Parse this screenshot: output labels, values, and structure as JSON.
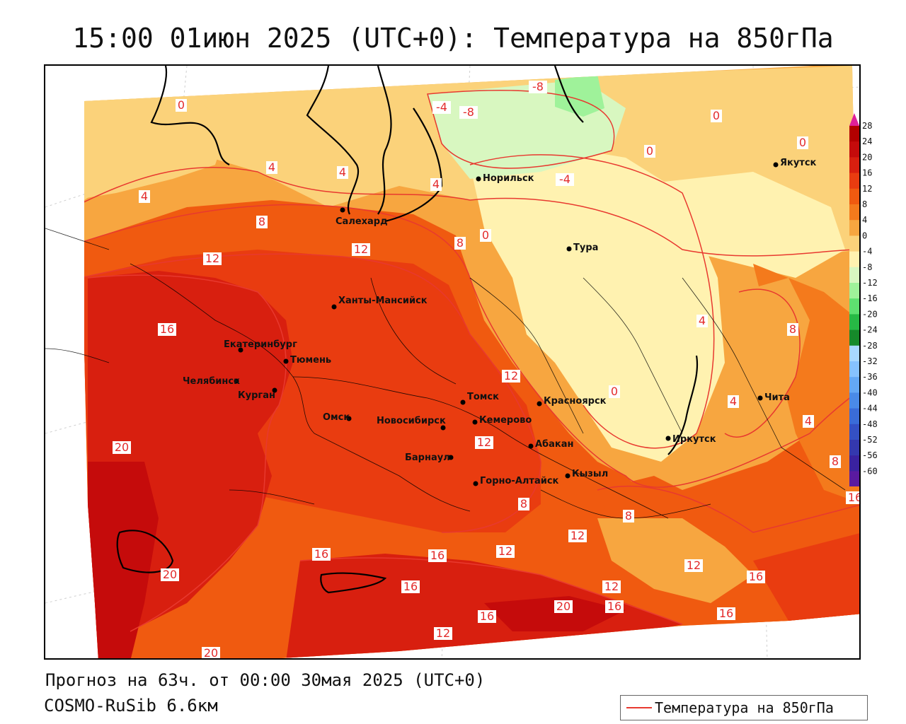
{
  "title": "15:00 01июн 2025 (UTC+0): Температура на 850гПа",
  "forecast_text": "Прогноз на 63ч. от 00:00 30мая 2025 (UTC+0)",
  "model_text": "COSMO-RuSib 6.6км",
  "legend": {
    "label": "Температура на 850гПа",
    "line_color": "#e8392f"
  },
  "colorbar": {
    "tick_labels": [
      "28",
      "24",
      "20",
      "16",
      "12",
      "8",
      "4",
      "0",
      "-4",
      "-8",
      "-12",
      "-16",
      "-20",
      "-24",
      "-28",
      "-32",
      "-36",
      "-40",
      "-44",
      "-48",
      "-52",
      "-56",
      "-60"
    ],
    "colors": [
      "#b30000",
      "#c50b0b",
      "#d81f0f",
      "#e93c10",
      "#f05a10",
      "#f47a1c",
      "#f7a640",
      "#fbd27a",
      "#fff2b0",
      "#d8f7c0",
      "#9ff29a",
      "#5ee070",
      "#27b945",
      "#168a2a",
      "#a8d8ff",
      "#86c2ff",
      "#64a8f5",
      "#4a8ae8",
      "#3a6cd8",
      "#3450c4",
      "#3438ae",
      "#3a22a0",
      "#5a1aa0"
    ],
    "top_arrow_color": "#e0209a",
    "bottom_arrow_color": "#8a1ab0"
  },
  "cities": [
    {
      "name": "Норильск"
    },
    {
      "name": "Салехард"
    },
    {
      "name": "Якутск"
    },
    {
      "name": "Тура"
    },
    {
      "name": "Ханты-Мансийск"
    },
    {
      "name": "Екатеринбург"
    },
    {
      "name": "Тюмень"
    },
    {
      "name": "Челябинск"
    },
    {
      "name": "Курган"
    },
    {
      "name": "Омск"
    },
    {
      "name": "Новосибирск"
    },
    {
      "name": "Томск"
    },
    {
      "name": "Кемерово"
    },
    {
      "name": "Красноярск"
    },
    {
      "name": "Барнаул"
    },
    {
      "name": "Абакан"
    },
    {
      "name": "Горно-Алтайск"
    },
    {
      "name": "Кызыл"
    },
    {
      "name": "Иркутск"
    },
    {
      "name": "Чита"
    }
  ],
  "isoline_labels": [
    "0",
    "-8",
    "-4",
    "-8",
    "0",
    "0",
    "0",
    "4",
    "4",
    "4",
    "-4",
    "4",
    "0",
    "8",
    "8",
    "12",
    "12",
    "16",
    "12",
    "0",
    "8",
    "4",
    "4",
    "4",
    "8",
    "16",
    "20",
    "20",
    "16",
    "16",
    "12",
    "12",
    "16",
    "8",
    "12",
    "8",
    "12",
    "12",
    "16",
    "20",
    "16",
    "16",
    "12",
    "16",
    "20"
  ]
}
